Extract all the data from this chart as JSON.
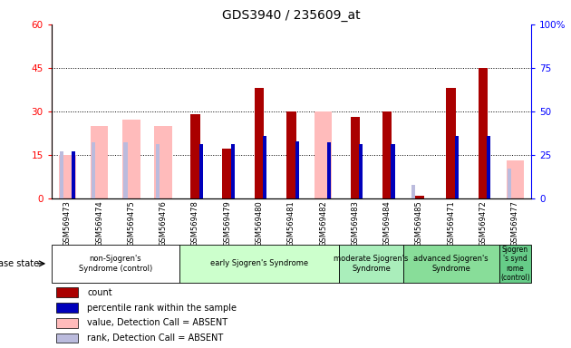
{
  "title": "GDS3940 / 235609_at",
  "samples": [
    "GSM569473",
    "GSM569474",
    "GSM569475",
    "GSM569476",
    "GSM569478",
    "GSM569479",
    "GSM569480",
    "GSM569481",
    "GSM569482",
    "GSM569483",
    "GSM569484",
    "GSM569485",
    "GSM569471",
    "GSM569472",
    "GSM569477"
  ],
  "count_values": [
    null,
    null,
    null,
    null,
    29,
    17,
    38,
    30,
    null,
    28,
    30,
    1,
    38,
    45,
    null
  ],
  "percentile_values": [
    27,
    null,
    null,
    null,
    31,
    31,
    36,
    33,
    32,
    31,
    31,
    null,
    36,
    36,
    null
  ],
  "absent_value_values": [
    15,
    25,
    27,
    25,
    null,
    null,
    null,
    null,
    30,
    null,
    null,
    null,
    null,
    null,
    13
  ],
  "absent_rank_values": [
    27,
    32,
    32,
    31,
    null,
    null,
    null,
    null,
    null,
    null,
    null,
    8,
    null,
    null,
    17
  ],
  "groups": [
    {
      "label": "non-Sjogren's\nSyndrome (control)",
      "start": 0,
      "end": 3,
      "color": "#ffffff"
    },
    {
      "label": "early Sjogren's Syndrome",
      "start": 4,
      "end": 8,
      "color": "#ccffcc"
    },
    {
      "label": "moderate Sjogren's\nSyndrome",
      "start": 9,
      "end": 10,
      "color": "#aaeebb"
    },
    {
      "label": "advanced Sjogren's Syndrome",
      "start": 11,
      "end": 13,
      "color": "#88dd99"
    },
    {
      "label": "Sjogren\n's synd\nrome\n(control)",
      "start": 14,
      "end": 14,
      "color": "#66cc88"
    }
  ],
  "ylim_left": [
    0,
    60
  ],
  "ylim_right": [
    0,
    100
  ],
  "yticks_left": [
    0,
    15,
    30,
    45,
    60
  ],
  "ytick_labels_left": [
    "0",
    "15",
    "30",
    "45",
    "60"
  ],
  "yticks_right": [
    0,
    25,
    50,
    75,
    100
  ],
  "ytick_labels_right": [
    "0",
    "25",
    "50",
    "75",
    "100%"
  ],
  "count_color": "#aa0000",
  "percentile_color": "#0000bb",
  "absent_value_color": "#ffbbbb",
  "absent_rank_color": "#bbbbdd",
  "legend_items": [
    {
      "label": "count",
      "color": "#aa0000"
    },
    {
      "label": "percentile rank within the sample",
      "color": "#0000bb"
    },
    {
      "label": "value, Detection Call = ABSENT",
      "color": "#ffbbbb"
    },
    {
      "label": "rank, Detection Call = ABSENT",
      "color": "#bbbbdd"
    }
  ]
}
